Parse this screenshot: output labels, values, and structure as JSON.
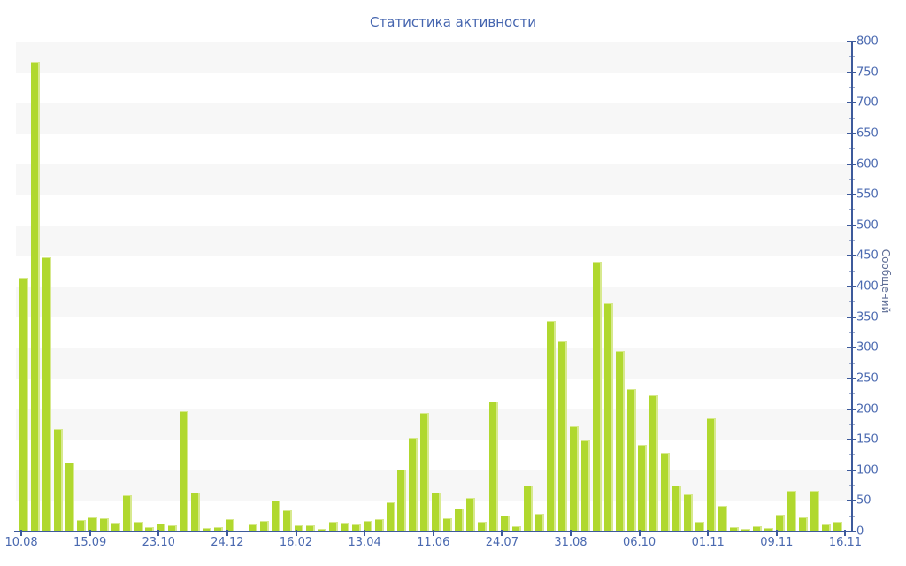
{
  "chart_data": {
    "type": "bar",
    "title": "Статистика активности",
    "ylabel": "Сообщений",
    "xlabel": "",
    "ylim": [
      0,
      800
    ],
    "y_major_step": 50,
    "y_minor_step": 25,
    "legend": "none",
    "grid": "alternating horizontal stripe bands every 50 units, gray from 800 downward",
    "x_tick_labels": [
      "10.08",
      "15.09",
      "23.10",
      "24.12",
      "16.02",
      "13.04",
      "11.06",
      "24.07",
      "31.08",
      "06.10",
      "01.11",
      "09.11",
      "16.11"
    ],
    "values": [
      415,
      767,
      448,
      168,
      112,
      19,
      23,
      22,
      14,
      59,
      16,
      7,
      13,
      10,
      197,
      64,
      6,
      7,
      20,
      2,
      12,
      17,
      51,
      34,
      10,
      10,
      5,
      16,
      14,
      12,
      17,
      20,
      47,
      101,
      153,
      193,
      63,
      22,
      38,
      55,
      16,
      213,
      26,
      9,
      75,
      29,
      343,
      310,
      172,
      149,
      440,
      372,
      294,
      233,
      141,
      222,
      129,
      75,
      60,
      16,
      185,
      42,
      7,
      5,
      9,
      6,
      28,
      67,
      23,
      66,
      11,
      16
    ]
  },
  "colors": {
    "bar_fill": "#b0d82e",
    "bar_highlight": "#d7e98e",
    "axis_line": "#3d5a9b",
    "tick_label": "#4a69b0",
    "title_text": "#4565af",
    "y_axis_title_text": "#5c6b94",
    "band_gray": "#f7f7f7",
    "background": "#ffffff"
  }
}
